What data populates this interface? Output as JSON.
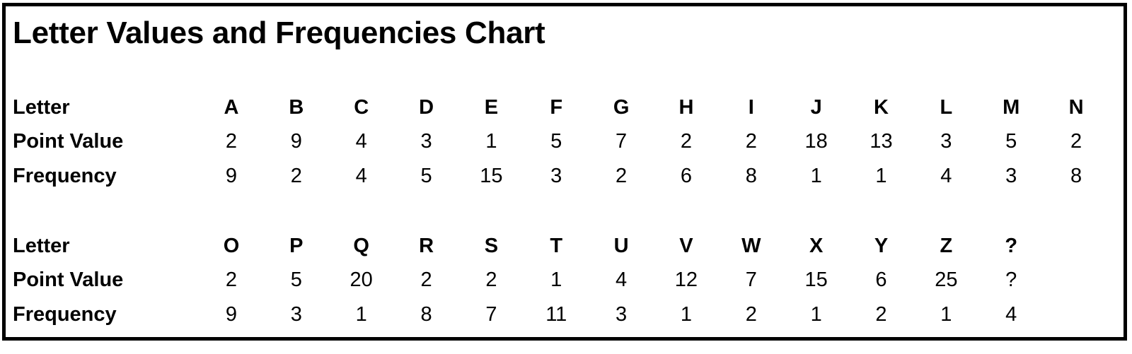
{
  "title": "Letter Values and Frequencies Chart",
  "row_labels": {
    "letter": "Letter",
    "point_value": "Point Value",
    "frequency": "Frequency"
  },
  "blocks": [
    {
      "letters": [
        "A",
        "B",
        "C",
        "D",
        "E",
        "F",
        "G",
        "H",
        "I",
        "J",
        "K",
        "L",
        "M",
        "N"
      ],
      "point_values": [
        "2",
        "9",
        "4",
        "3",
        "1",
        "5",
        "7",
        "2",
        "2",
        "18",
        "13",
        "3",
        "5",
        "2"
      ],
      "frequencies": [
        "9",
        "2",
        "4",
        "5",
        "15",
        "3",
        "2",
        "6",
        "8",
        "1",
        "1",
        "4",
        "3",
        "8"
      ]
    },
    {
      "letters": [
        "O",
        "P",
        "Q",
        "R",
        "S",
        "T",
        "U",
        "V",
        "W",
        "X",
        "Y",
        "Z",
        "?"
      ],
      "point_values": [
        "2",
        "5",
        "20",
        "2",
        "2",
        "1",
        "4",
        "12",
        "7",
        "15",
        "6",
        "25",
        "?"
      ],
      "frequencies": [
        "9",
        "3",
        "1",
        "8",
        "7",
        "11",
        "3",
        "1",
        "2",
        "1",
        "2",
        "1",
        "4"
      ]
    }
  ]
}
